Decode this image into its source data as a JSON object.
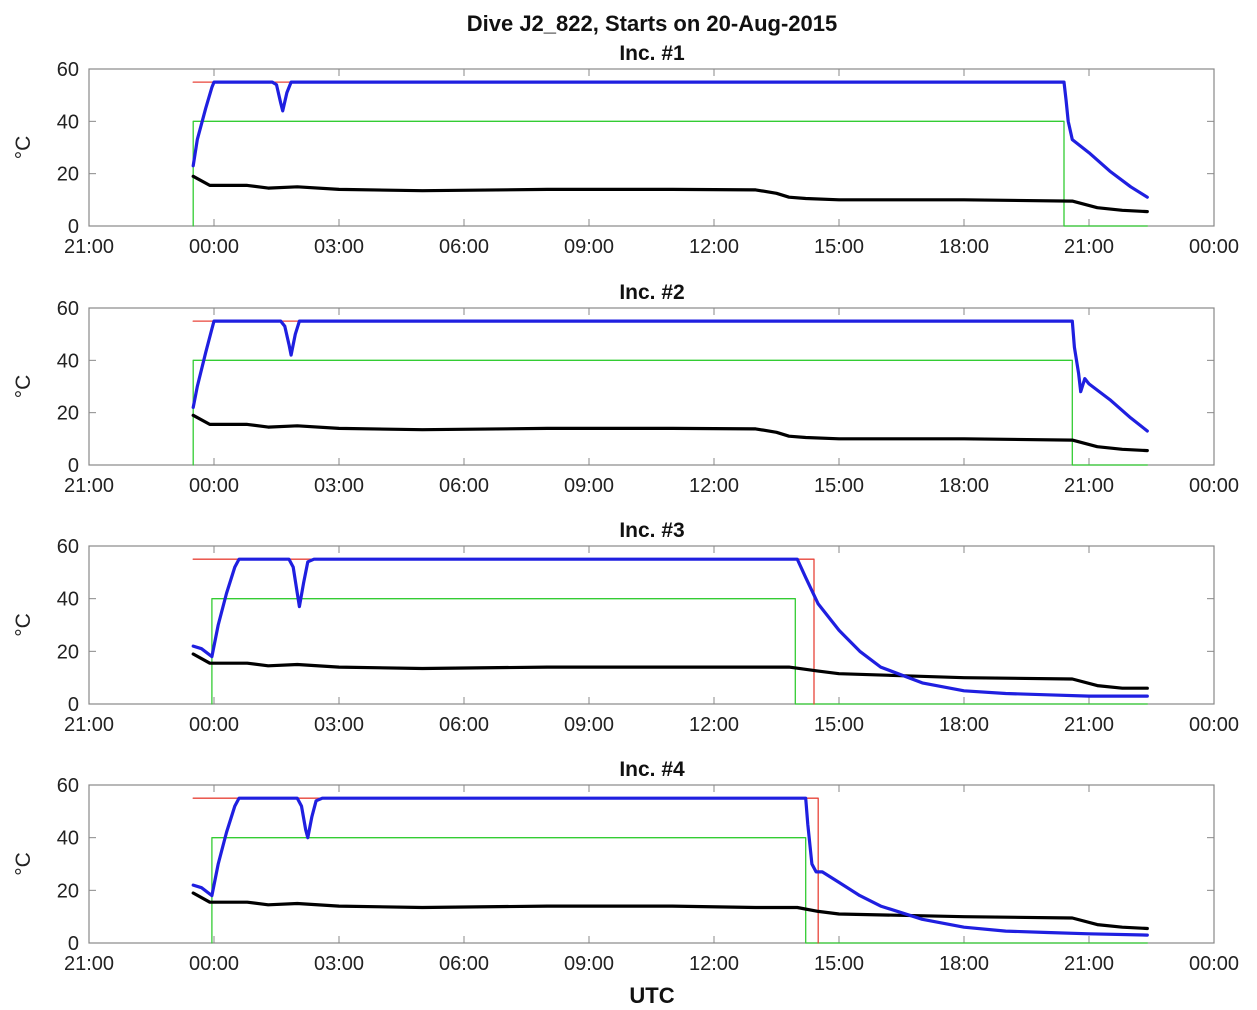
{
  "figure": {
    "title": "Dive J2_822, Starts on 20-Aug-2015",
    "xlabel": "UTC"
  },
  "colors": {
    "blue_series": "#1f1fe0",
    "black_series": "#000000",
    "red_series": "#e8443a",
    "green_series": "#33cc33",
    "axes": "#888888"
  },
  "chart_data": [
    {
      "type": "line",
      "title": "Inc. #1",
      "ylabel": "°C",
      "ylim": [
        0,
        60
      ],
      "yticks": [
        0,
        20,
        40,
        60
      ],
      "xlim_hours": [
        21,
        48
      ],
      "xticks": [
        21,
        24,
        27,
        30,
        33,
        36,
        39,
        42,
        45,
        48
      ],
      "xticklabels": [
        "21:00",
        "00:00",
        "03:00",
        "06:00",
        "09:00",
        "12:00",
        "15:00",
        "18:00",
        "21:00",
        "00:00"
      ],
      "grid": false,
      "series": [
        {
          "color": "blue",
          "x": [
            23.5,
            23.6,
            23.8,
            23.95,
            24.0,
            25.4,
            25.5,
            25.6,
            25.65,
            25.75,
            25.85,
            26.0,
            44.4,
            44.45,
            44.5,
            44.6,
            45.0,
            45.5,
            46.0,
            46.4
          ],
          "y": [
            23,
            33,
            45,
            53,
            55,
            55,
            54,
            47,
            44,
            51,
            55,
            55,
            55,
            48,
            40,
            33,
            28,
            21,
            15,
            11
          ]
        },
        {
          "color": "black",
          "x": [
            23.5,
            23.9,
            24.3,
            24.8,
            25.3,
            26.0,
            27.0,
            29.0,
            32.0,
            35.0,
            37.0,
            37.5,
            37.8,
            38.2,
            39.0,
            42.0,
            44.6,
            45.2,
            45.8,
            46.4
          ],
          "y": [
            19,
            15.5,
            15.5,
            15.5,
            14.5,
            15,
            14,
            13.5,
            14,
            14,
            13.8,
            12.5,
            11,
            10.5,
            10,
            10,
            9.5,
            7,
            6,
            5.5
          ]
        },
        {
          "color": "red",
          "x": [
            23.5,
            44.4
          ],
          "y": [
            55,
            55
          ]
        },
        {
          "color": "green",
          "x": [
            23.5,
            23.5,
            44.4,
            44.4,
            46.4
          ],
          "y": [
            0,
            40,
            40,
            0,
            0
          ]
        }
      ]
    },
    {
      "type": "line",
      "title": "Inc. #2",
      "ylabel": "°C",
      "ylim": [
        0,
        60
      ],
      "yticks": [
        0,
        20,
        40,
        60
      ],
      "xlim_hours": [
        21,
        48
      ],
      "xticks": [
        21,
        24,
        27,
        30,
        33,
        36,
        39,
        42,
        45,
        48
      ],
      "xticklabels": [
        "21:00",
        "00:00",
        "03:00",
        "06:00",
        "09:00",
        "12:00",
        "15:00",
        "18:00",
        "21:00",
        "00:00"
      ],
      "grid": false,
      "series": [
        {
          "color": "blue",
          "x": [
            23.5,
            23.6,
            23.8,
            23.95,
            24.0,
            25.6,
            25.7,
            25.8,
            25.85,
            25.95,
            26.05,
            26.2,
            44.6,
            44.65,
            44.75,
            44.8,
            44.9,
            45.0,
            45.5,
            46.0,
            46.4
          ],
          "y": [
            22,
            30,
            43,
            52,
            55,
            55,
            53,
            46,
            42,
            50,
            55,
            55,
            55,
            45,
            35,
            28,
            33,
            31,
            25,
            18,
            13
          ]
        },
        {
          "color": "black",
          "x": [
            23.5,
            23.9,
            24.3,
            24.8,
            25.3,
            26.0,
            27.0,
            29.0,
            32.0,
            35.0,
            37.0,
            37.5,
            37.8,
            38.2,
            39.0,
            42.0,
            44.6,
            45.2,
            45.8,
            46.4
          ],
          "y": [
            19,
            15.5,
            15.5,
            15.5,
            14.5,
            15,
            14,
            13.5,
            14,
            14,
            13.8,
            12.5,
            11,
            10.5,
            10,
            10,
            9.5,
            7,
            6,
            5.5
          ]
        },
        {
          "color": "red",
          "x": [
            23.5,
            44.6
          ],
          "y": [
            55,
            55
          ]
        },
        {
          "color": "green",
          "x": [
            23.5,
            23.5,
            44.6,
            44.6,
            46.4
          ],
          "y": [
            0,
            40,
            40,
            0,
            0
          ]
        }
      ]
    },
    {
      "type": "line",
      "title": "Inc. #3",
      "ylabel": "°C",
      "ylim": [
        0,
        60
      ],
      "yticks": [
        0,
        20,
        40,
        60
      ],
      "xlim_hours": [
        21,
        48
      ],
      "xticks": [
        21,
        24,
        27,
        30,
        33,
        36,
        39,
        42,
        45,
        48
      ],
      "xticklabels": [
        "21:00",
        "00:00",
        "03:00",
        "06:00",
        "09:00",
        "12:00",
        "15:00",
        "18:00",
        "21:00",
        "00:00"
      ],
      "grid": false,
      "series": [
        {
          "color": "blue",
          "x": [
            23.5,
            23.7,
            23.95,
            24.1,
            24.3,
            24.5,
            24.6,
            25.8,
            25.9,
            26.0,
            26.05,
            26.15,
            26.25,
            26.4,
            38.0,
            38.2,
            38.5,
            39.0,
            39.5,
            40.0,
            41.0,
            42.0,
            43.0,
            44.0,
            45.0,
            46.4
          ],
          "y": [
            22,
            21,
            18,
            30,
            42,
            52,
            55,
            55,
            52,
            42,
            37,
            46,
            54,
            55,
            55,
            48,
            38,
            28,
            20,
            14,
            8,
            5,
            4,
            3.5,
            3,
            3
          ]
        },
        {
          "color": "black",
          "x": [
            23.5,
            23.9,
            24.3,
            24.8,
            25.3,
            26.0,
            27.0,
            29.0,
            32.0,
            35.0,
            37.0,
            37.8,
            38.5,
            39.0,
            42.0,
            44.6,
            45.2,
            45.8,
            46.4
          ],
          "y": [
            19,
            15.5,
            15.5,
            15.5,
            14.5,
            15,
            14,
            13.5,
            14,
            14,
            14,
            14,
            12.5,
            11.5,
            10,
            9.5,
            7,
            6,
            6
          ]
        },
        {
          "color": "red",
          "x": [
            23.5,
            38.4,
            38.4
          ],
          "y": [
            55,
            55,
            0
          ]
        },
        {
          "color": "green",
          "x": [
            23.95,
            23.95,
            37.95,
            37.95,
            46.4
          ],
          "y": [
            0,
            40,
            40,
            0,
            0
          ]
        }
      ]
    },
    {
      "type": "line",
      "title": "Inc. #4",
      "ylabel": "°C",
      "ylim": [
        0,
        60
      ],
      "yticks": [
        0,
        20,
        40,
        60
      ],
      "xlim_hours": [
        21,
        48
      ],
      "xticks": [
        21,
        24,
        27,
        30,
        33,
        36,
        39,
        42,
        45,
        48
      ],
      "xticklabels": [
        "21:00",
        "00:00",
        "03:00",
        "06:00",
        "09:00",
        "12:00",
        "15:00",
        "18:00",
        "21:00",
        "00:00"
      ],
      "grid": false,
      "series": [
        {
          "color": "blue",
          "x": [
            23.5,
            23.7,
            23.95,
            24.1,
            24.3,
            24.5,
            24.6,
            26.0,
            26.1,
            26.2,
            26.25,
            26.35,
            26.45,
            26.6,
            38.2,
            38.25,
            38.35,
            38.45,
            38.6,
            39.0,
            39.5,
            40.0,
            41.0,
            42.0,
            43.0,
            44.0,
            45.0,
            46.4
          ],
          "y": [
            22,
            21,
            18,
            30,
            42,
            52,
            55,
            55,
            52,
            43,
            40,
            48,
            54,
            55,
            55,
            45,
            30,
            27,
            27,
            23,
            18,
            14,
            9,
            6,
            4.5,
            4,
            3.5,
            3
          ]
        },
        {
          "color": "black",
          "x": [
            23.5,
            23.9,
            24.3,
            24.8,
            25.3,
            26.0,
            27.0,
            29.0,
            32.0,
            35.0,
            37.0,
            38.0,
            38.5,
            39.0,
            42.0,
            44.6,
            45.2,
            45.8,
            46.4
          ],
          "y": [
            19,
            15.5,
            15.5,
            15.5,
            14.5,
            15,
            14,
            13.5,
            14,
            14,
            13.5,
            13.5,
            12,
            11,
            10,
            9.5,
            7,
            6,
            5.5
          ]
        },
        {
          "color": "red",
          "x": [
            23.5,
            38.5,
            38.5
          ],
          "y": [
            55,
            55,
            0
          ]
        },
        {
          "color": "green",
          "x": [
            23.95,
            23.95,
            38.2,
            38.2,
            46.4
          ],
          "y": [
            0,
            40,
            40,
            0,
            0
          ]
        }
      ]
    }
  ]
}
